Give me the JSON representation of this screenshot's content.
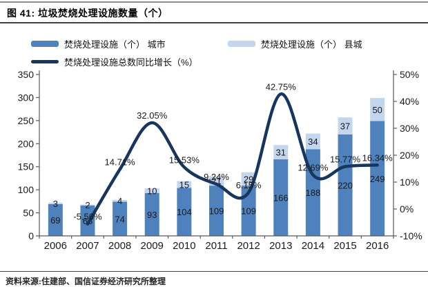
{
  "header": {
    "title": "图 41: 垃圾焚烧处理设施数量（个）"
  },
  "footer": {
    "source": "资料来源:住建部、国信证券经济研究所整理"
  },
  "colors": {
    "city_bar": "#4F81BD",
    "county_bar": "#C3D6EE",
    "growth_line": "#17365D",
    "axis": "#595959",
    "label_text": "#1a1a1a"
  },
  "chart_data": {
    "type": "bar",
    "subtype": "stacked-bars-with-line",
    "title": "垃圾焚烧处理设施数量（个）",
    "categories": [
      "2006",
      "2007",
      "2008",
      "2009",
      "2010",
      "2011",
      "2012",
      "2013",
      "2014",
      "2015",
      "2016"
    ],
    "series": [
      {
        "name": "焚烧处理设施（个） 城市",
        "type": "bar",
        "axis": "left",
        "color": "#4F81BD",
        "values": [
          69,
          66,
          74,
          93,
          104,
          109,
          109,
          166,
          188,
          220,
          249
        ]
      },
      {
        "name": "焚烧处理设施（个） 县城",
        "type": "bar",
        "axis": "left",
        "color": "#C3D6EE",
        "values": [
          3,
          2,
          4,
          10,
          15,
          21,
          29,
          31,
          34,
          37,
          50
        ]
      },
      {
        "name": "焚烧处理设施总数同比增长（%）",
        "type": "line",
        "axis": "right",
        "color": "#17365D",
        "values": [
          null,
          -5.56,
          14.71,
          32.05,
          15.53,
          9.24,
          6.15,
          42.75,
          12.69,
          15.77,
          16.34
        ],
        "labels": [
          "",
          "-5.56%",
          "14.71%",
          "32.05%",
          "15.53%",
          "9.24%",
          "6.15%",
          "42.75%",
          "12.69%",
          "15.77%",
          "16.34%"
        ]
      }
    ],
    "left_axis": {
      "min": 0,
      "max": 350,
      "ticks": [
        0,
        50,
        100,
        150,
        200,
        250,
        300,
        350
      ]
    },
    "right_axis": {
      "min": -10,
      "max": 50,
      "ticks": [
        -10,
        0,
        10,
        20,
        30,
        40,
        50
      ],
      "tick_labels": [
        "-10%",
        "0%",
        "10%",
        "20%",
        "30%",
        "40%",
        "50%"
      ]
    },
    "grid": false,
    "legend_position": "top"
  }
}
